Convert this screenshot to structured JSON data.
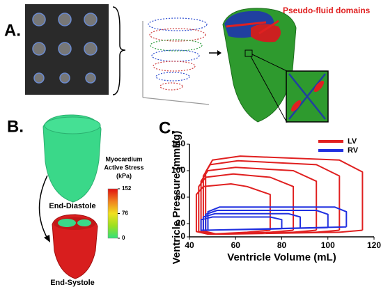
{
  "panel_labels": [
    "A.",
    "B.",
    "C."
  ],
  "annotation": "Pseudo-fluid domains",
  "states": [
    "End-Diastole",
    "End-Systole"
  ],
  "colorbar": {
    "title_lines": [
      "Myocardium",
      "Active Stress",
      "(kPa)"
    ],
    "lim": [
      0,
      152
    ],
    "ticks": [
      152,
      76,
      0
    ],
    "colors": [
      "#33e07a",
      "#9be020",
      "#f0e020",
      "#f08020",
      "#e01010"
    ]
  },
  "chart_data": {
    "type": "line",
    "xlabel": "Ventricle Volume (mL)",
    "ylabel": "Ventricle Pressure (mmHg)",
    "xlim": [
      40,
      120
    ],
    "xticks": [
      40,
      60,
      80,
      100,
      120
    ],
    "ylim": [
      0,
      140
    ],
    "yticks": [
      0,
      20,
      60,
      100,
      140
    ],
    "legend": "top-right",
    "series": [
      {
        "name": "LV",
        "color": "#e02020",
        "x": [
          115,
          115,
          105,
          62,
          50,
          47,
          47,
          52,
          105,
          115,
          null,
          105,
          105,
          95,
          61,
          49,
          46,
          46,
          51,
          95,
          105,
          null,
          95,
          95,
          85,
          60,
          48,
          45,
          45,
          50,
          85,
          95,
          null,
          85,
          85,
          75,
          59,
          47,
          44,
          44,
          49,
          75,
          85,
          null,
          75,
          75,
          65,
          58,
          46,
          43,
          43,
          48,
          65,
          75
        ],
        "values": [
          10,
          98,
          116,
          122,
          116,
          98,
          8,
          4,
          7,
          10,
          null,
          10,
          92,
          109,
          115,
          109,
          92,
          8,
          4,
          7,
          10,
          null,
          10,
          84,
          100,
          105,
          100,
          84,
          8,
          4,
          7,
          10,
          null,
          10,
          76,
          90,
          95,
          90,
          76,
          8,
          4,
          7,
          10,
          null,
          10,
          64,
          76,
          80,
          76,
          64,
          8,
          4,
          7,
          10
        ]
      },
      {
        "name": "RV",
        "color": "#2030e0",
        "x": [
          108,
          108,
          103,
          53,
          48,
          48,
          108,
          null,
          100,
          100,
          95,
          52,
          47,
          47,
          100,
          null,
          88,
          88,
          83,
          51,
          46,
          46,
          88,
          null,
          80,
          80,
          75,
          50,
          45,
          45,
          80
        ],
        "values": [
          15,
          38,
          45,
          45,
          38,
          10,
          15,
          null,
          14,
          34,
          40,
          40,
          34,
          10,
          14,
          null,
          13,
          30,
          35,
          35,
          30,
          10,
          13,
          null,
          12,
          26,
          30,
          30,
          26,
          10,
          12
        ]
      }
    ]
  }
}
